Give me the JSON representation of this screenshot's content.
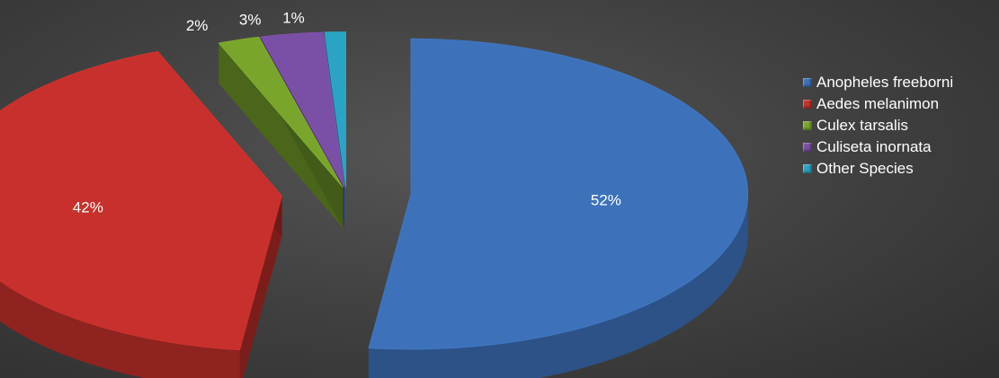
{
  "chart_data": {
    "type": "pie",
    "style": "3d-exploded",
    "categories": [
      "Anopheles freeborni",
      "Aedes melanimon",
      "Culex tarsalis",
      "Culiseta inornata",
      "Other Species"
    ],
    "values": [
      52,
      42,
      2,
      3,
      1
    ],
    "data_labels": [
      "52%",
      "42%",
      "2%",
      "3%",
      "1%"
    ],
    "colors": [
      "#3d72bb",
      "#c7302c",
      "#79a52c",
      "#7a4fa6",
      "#2aa3c4"
    ],
    "legend_position": "right",
    "background": "#3f3f3f",
    "label_color": "#ffffff"
  }
}
